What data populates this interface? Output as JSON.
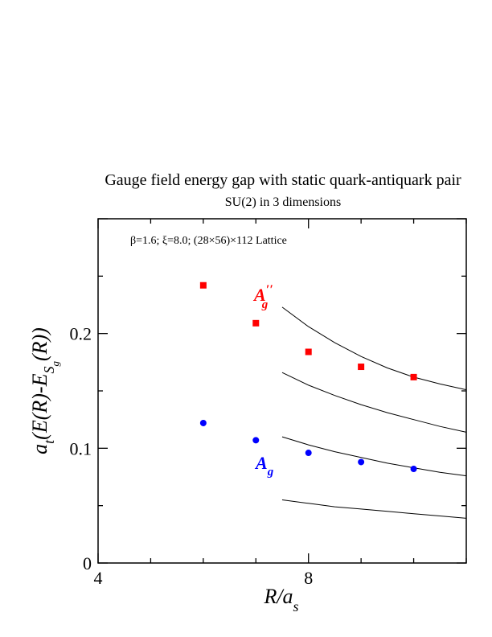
{
  "chart_data": {
    "type": "scatter",
    "title": "Gauge field energy gap with static quark-antiquark pair",
    "subtitle": "SU(2) in 3 dimensions",
    "annotation": "β=1.6;  ξ=8.0;  (28×56)×112 Lattice",
    "xlabel": {
      "main": "R/a",
      "sub": "s"
    },
    "ylabel": {
      "pre": "a",
      "pre_sub": "t",
      "mid": "(E(R)-E",
      "mid_sub": "S",
      "mid_subsub": "g",
      "post": "(R))"
    },
    "xlim": [
      4,
      11
    ],
    "ylim": [
      0,
      0.3
    ],
    "x_ticks": [
      4,
      8
    ],
    "y_ticks": [
      0,
      0.1,
      0.2
    ],
    "x_tick_labels": [
      "4",
      "8"
    ],
    "y_tick_labels": [
      "0",
      "0.1",
      "0.2"
    ],
    "grid": false,
    "series": [
      {
        "name": "A''g",
        "label_main": "A",
        "label_sup": "′′",
        "label_sub": "g",
        "color": "#ff0000",
        "marker": "square",
        "x": [
          6,
          7,
          8,
          9,
          10
        ],
        "y": [
          0.242,
          0.209,
          0.184,
          0.171,
          0.162
        ]
      },
      {
        "name": "Ag",
        "label_main": "A",
        "label_sub": "g",
        "color": "#0000ff",
        "marker": "circle",
        "x": [
          6,
          7,
          8,
          9,
          10
        ],
        "y": [
          0.122,
          0.107,
          0.096,
          0.088,
          0.082
        ]
      }
    ],
    "curves": [
      {
        "x": [
          7.5,
          8.0,
          8.5,
          9.0,
          9.5,
          10.0,
          10.5,
          11.0
        ],
        "y": [
          0.223,
          0.206,
          0.192,
          0.18,
          0.17,
          0.162,
          0.156,
          0.151
        ]
      },
      {
        "x": [
          7.5,
          8.0,
          8.5,
          9.0,
          9.5,
          10.0,
          10.5,
          11.0
        ],
        "y": [
          0.166,
          0.155,
          0.146,
          0.138,
          0.131,
          0.125,
          0.119,
          0.114
        ]
      },
      {
        "x": [
          7.5,
          8.0,
          8.5,
          9.0,
          9.5,
          10.0,
          10.5,
          11.0
        ],
        "y": [
          0.11,
          0.103,
          0.097,
          0.092,
          0.087,
          0.083,
          0.079,
          0.076
        ]
      },
      {
        "x": [
          7.5,
          8.0,
          8.5,
          9.0,
          9.5,
          10.0,
          10.5,
          11.0
        ],
        "y": [
          0.055,
          0.052,
          0.049,
          0.047,
          0.045,
          0.043,
          0.041,
          0.039
        ]
      }
    ]
  }
}
